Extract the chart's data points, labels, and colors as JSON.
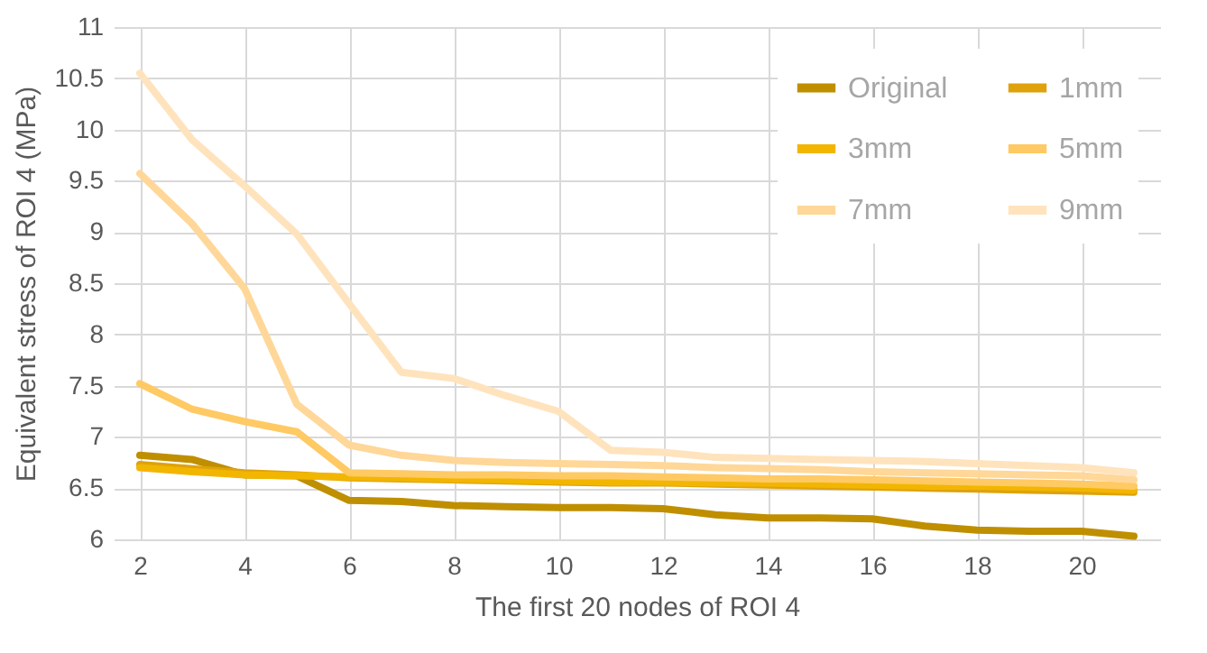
{
  "chart_data": {
    "type": "line",
    "xlabel": "The first 20 nodes of ROI 4",
    "ylabel": "Equivalent stress of ROI 4 (MPa)",
    "x": [
      2,
      3,
      4,
      5,
      6,
      7,
      8,
      9,
      10,
      11,
      12,
      13,
      14,
      15,
      16,
      17,
      18,
      19,
      20,
      21
    ],
    "xlim": [
      1.5,
      21.5
    ],
    "xticks": [
      2,
      4,
      6,
      8,
      10,
      12,
      14,
      16,
      18,
      20
    ],
    "ylim": [
      6,
      11
    ],
    "yticks": [
      6,
      6.5,
      7,
      7.5,
      8,
      8.5,
      9,
      9.5,
      10,
      10.5,
      11
    ],
    "grid": true,
    "legend": "top right",
    "marker": "none",
    "line_style": "solid",
    "series": [
      {
        "name": "Original",
        "color": "#bf8f00",
        "values": [
          6.82,
          6.78,
          6.63,
          6.62,
          6.38,
          6.37,
          6.33,
          6.32,
          6.31,
          6.31,
          6.3,
          6.24,
          6.21,
          6.21,
          6.2,
          6.13,
          6.09,
          6.08,
          6.08,
          6.03
        ]
      },
      {
        "name": "1mm",
        "color": "#dfa20c",
        "values": [
          6.73,
          6.69,
          6.65,
          6.63,
          6.6,
          6.59,
          6.58,
          6.57,
          6.56,
          6.55,
          6.55,
          6.54,
          6.53,
          6.52,
          6.51,
          6.5,
          6.49,
          6.48,
          6.47,
          6.46
        ]
      },
      {
        "name": "3mm",
        "color": "#f2b600",
        "values": [
          6.7,
          6.66,
          6.63,
          6.62,
          6.61,
          6.6,
          6.59,
          6.58,
          6.57,
          6.56,
          6.56,
          6.55,
          6.55,
          6.54,
          6.53,
          6.52,
          6.52,
          6.51,
          6.5,
          6.48
        ]
      },
      {
        "name": "5mm",
        "color": "#ffc964",
        "values": [
          7.52,
          7.27,
          7.15,
          7.05,
          6.65,
          6.64,
          6.63,
          6.63,
          6.62,
          6.62,
          6.61,
          6.6,
          6.59,
          6.59,
          6.58,
          6.57,
          6.56,
          6.55,
          6.54,
          6.52
        ]
      },
      {
        "name": "7mm",
        "color": "#ffd798",
        "values": [
          9.57,
          9.08,
          8.45,
          7.32,
          6.92,
          6.82,
          6.77,
          6.75,
          6.74,
          6.73,
          6.72,
          6.7,
          6.69,
          6.68,
          6.66,
          6.65,
          6.64,
          6.63,
          6.62,
          6.58
        ]
      },
      {
        "name": "9mm",
        "color": "#ffe3bd",
        "values": [
          10.55,
          9.9,
          9.45,
          8.98,
          8.3,
          7.63,
          7.57,
          7.4,
          7.25,
          6.87,
          6.85,
          6.8,
          6.79,
          6.78,
          6.77,
          6.76,
          6.74,
          6.72,
          6.7,
          6.65
        ]
      }
    ]
  }
}
